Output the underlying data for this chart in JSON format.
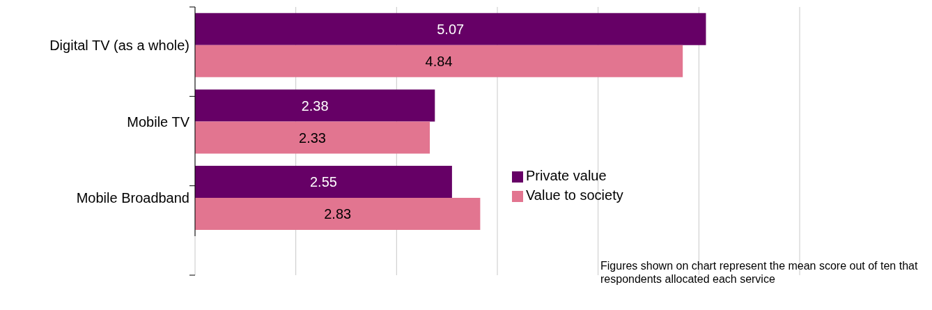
{
  "chart_data": {
    "type": "bar",
    "orientation": "horizontal",
    "categories": [
      "Digital TV (as a whole)",
      "Mobile TV",
      "Mobile Broadband"
    ],
    "series": [
      {
        "name": "Private value",
        "color": "#660066",
        "values": [
          5.07,
          2.38,
          2.55
        ]
      },
      {
        "name": "Value to society",
        "color": "#e27590",
        "values": [
          4.84,
          2.33,
          2.83
        ]
      }
    ],
    "xlim": [
      0,
      6
    ],
    "xticks": [
      {
        "value": 0,
        "label": null
      },
      {
        "value": 1,
        "label": null
      },
      {
        "value": 2,
        "label": null
      },
      {
        "value": 3,
        "label": null
      },
      {
        "value": 4,
        "label": null
      },
      {
        "value": 5,
        "label": null
      },
      {
        "value": 6,
        "label": null
      }
    ],
    "tick_labels": "y",
    "grid": "x",
    "legend": "right",
    "data_labels": true,
    "annotations": [
      "Figures shown on chart represent the mean score out of ten that respondents allocated each service"
    ]
  }
}
